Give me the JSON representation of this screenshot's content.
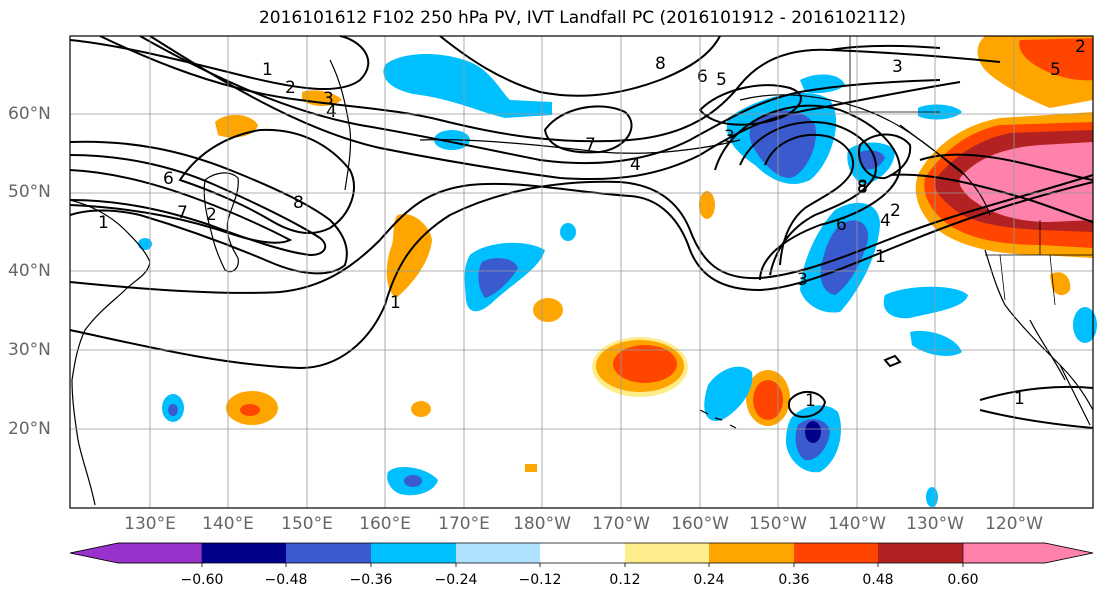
{
  "title": "2016101612 F102 250 hPa PV, IVT Landfall PC (2016101912 - 2016102112)",
  "lat_labels": [
    "60°N",
    "50°N",
    "40°N",
    "30°N",
    "20°N"
  ],
  "lon_labels": [
    "130°E",
    "140°E",
    "150°E",
    "160°E",
    "170°E",
    "180°W",
    "170°W",
    "160°W",
    "150°W",
    "140°W",
    "130°W",
    "120°W"
  ],
  "colorbar": {
    "colors": [
      "#9932cc",
      "#00008b",
      "#3a5bcd",
      "#00bfff",
      "#b0e2ff",
      "#ffffff",
      "#ffec8b",
      "#ffa500",
      "#ff4500",
      "#b22222",
      "#ff82ab"
    ],
    "tick_labels": [
      "−0.60",
      "−0.48",
      "−0.36",
      "−0.24",
      "−0.12",
      "0.12",
      "0.24",
      "0.36",
      "0.48",
      "0.60"
    ]
  },
  "contour_labels": [
    "1",
    "2",
    "3",
    "4",
    "8",
    "6",
    "7",
    "1",
    "2",
    "8",
    "6",
    "5",
    "7",
    "4",
    "3",
    "8",
    "6",
    "4",
    "2",
    "1",
    "3",
    "5",
    "1",
    "1",
    "8",
    "3",
    "2",
    "1"
  ],
  "shading_colors": {
    "light_blue": "#b0e2ff",
    "blue": "#00bfff",
    "mid_blue": "#3a5bcd",
    "navy": "#00008b",
    "yellow": "#ffec8b",
    "orange": "#ffa500",
    "red_orange": "#ff4500",
    "dark_red": "#b22222",
    "pink": "#ff82ab"
  }
}
